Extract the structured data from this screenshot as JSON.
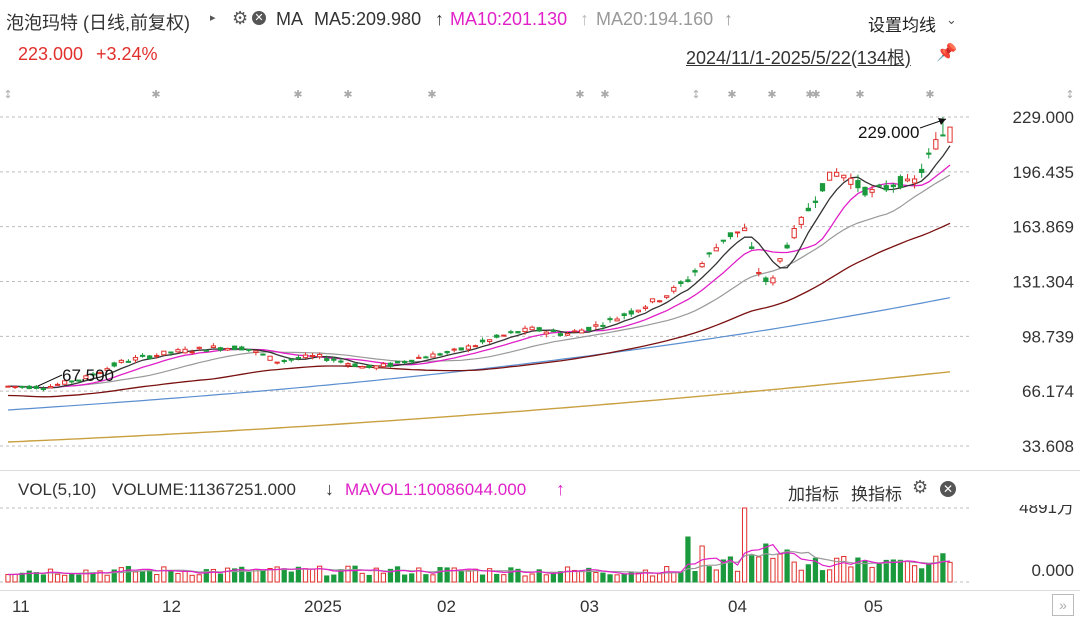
{
  "header": {
    "title": "泡泡玛特 (日线,前复权)",
    "ma_label": "MA",
    "ma5": "MA5:209.980",
    "ma10": "MA10:201.130",
    "ma20": "MA20:194.160",
    "settings_label": "设置均线",
    "price": "223.000",
    "change": "+3.24%",
    "date_range": "2024/11/1-2025/5/22(134根)"
  },
  "volume_header": {
    "vol_label": "VOL(5,10)",
    "volume": "VOLUME:11367251.000",
    "mavol": "MAVOL1:10086044.000",
    "add_indicator": "加指标",
    "switch_indicator": "换指标"
  },
  "colors": {
    "up": "#e0302c",
    "down": "#1a9a3c",
    "ma5": "#333333",
    "ma10": "#e021c8",
    "ma20": "#999999",
    "ma60": "#7a1010",
    "ma120": "#5b8fd0",
    "ma250": "#c9a040"
  },
  "chart_data": {
    "type": "candlestick",
    "y_ticks": [
      "229.000",
      "196.435",
      "163.869",
      "131.304",
      "98.739",
      "66.174",
      "33.608"
    ],
    "ylim": [
      33.608,
      229.0
    ],
    "annotations": {
      "high": "229.000",
      "low": "67.500"
    },
    "x_ticks": [
      "11",
      "12",
      "2025",
      "02",
      "03",
      "04",
      "05"
    ],
    "vol_ticks": [
      "4891万",
      "0.000"
    ],
    "vol_max": 4891
  }
}
